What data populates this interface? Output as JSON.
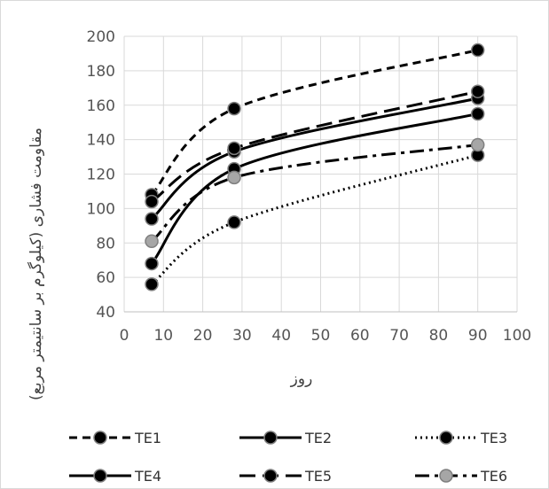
{
  "chart_data": {
    "type": "line",
    "title": "",
    "xlabel": "روز",
    "ylabel": "مقاومت فشاری (کیلوگرم بر سانتیمتر مربع)",
    "xlim": [
      0,
      100
    ],
    "ylim": [
      40,
      200
    ],
    "x_ticks": [
      "0",
      "10",
      "20",
      "30",
      "40",
      "50",
      "60",
      "70",
      "80",
      "90",
      "100"
    ],
    "y_ticks": [
      "40",
      "60",
      "80",
      "100",
      "120",
      "140",
      "160",
      "180",
      "200"
    ],
    "grid": "horizontal",
    "legend_position": "bottom",
    "x": [
      7,
      28,
      90
    ],
    "series": [
      {
        "name": "TE1",
        "values": [
          108,
          158,
          192
        ],
        "color": "#000000",
        "dash": "short-dash",
        "marker_fill": "#000000"
      },
      {
        "name": "TE2",
        "values": [
          68,
          123,
          155
        ],
        "color": "#000000",
        "dash": "solid",
        "marker_fill": "#000000"
      },
      {
        "name": "TE3",
        "values": [
          56,
          92,
          131
        ],
        "color": "#000000",
        "dash": "dot",
        "marker_fill": "#000000"
      },
      {
        "name": "TE4",
        "values": [
          94,
          133,
          164
        ],
        "color": "#000000",
        "dash": "solid",
        "marker_fill": "#000000"
      },
      {
        "name": "TE5",
        "values": [
          104,
          135,
          168
        ],
        "color": "#000000",
        "dash": "long-dash",
        "marker_fill": "#000000"
      },
      {
        "name": "TE6",
        "values": [
          81,
          118,
          137
        ],
        "color": "#000000",
        "dash": "dash-dot",
        "marker_fill": "#a6a6a6"
      }
    ]
  }
}
